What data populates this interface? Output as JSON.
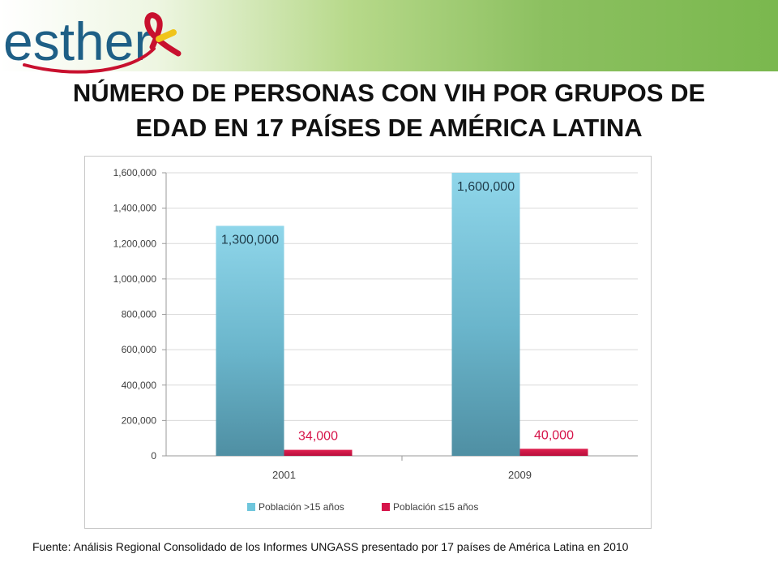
{
  "brand": {
    "logo_text": "esther"
  },
  "title": {
    "line1": "NÚMERO DE PERSONAS CON VIH POR GRUPOS DE",
    "line2": "EDAD EN 17 PAÍSES DE AMÉRICA LATINA"
  },
  "colors": {
    "series_adults": "#6fc6dc",
    "series_children": "#d6154a",
    "banner_green": "#8cc060",
    "logo_blue": "#1e5f86",
    "ribbon_red": "#c8102e",
    "ribbon_yellow": "#f0c419"
  },
  "chart_data": {
    "type": "bar",
    "title": "",
    "xlabel": "",
    "ylabel": "",
    "categories": [
      "2001",
      "2009"
    ],
    "series": [
      {
        "name": "Población >15 años",
        "values": [
          1300000,
          1600000
        ],
        "labels": [
          "1,300,000",
          "1,600,000"
        ]
      },
      {
        "name": "Población ≤15 años",
        "values": [
          34000,
          40000
        ],
        "labels": [
          "34,000",
          "40,000"
        ]
      }
    ],
    "ylim": [
      0,
      1600000
    ],
    "yticks": [
      "0",
      "200,000",
      "400,000",
      "600,000",
      "800,000",
      "1,000,000",
      "1,200,000",
      "1,400,000",
      "1,600,000"
    ],
    "grid": true,
    "legend": "bottom"
  },
  "source": "Fuente: Análisis Regional Consolidado de los Informes UNGASS presentado por 17 países de América Latina en 2010"
}
